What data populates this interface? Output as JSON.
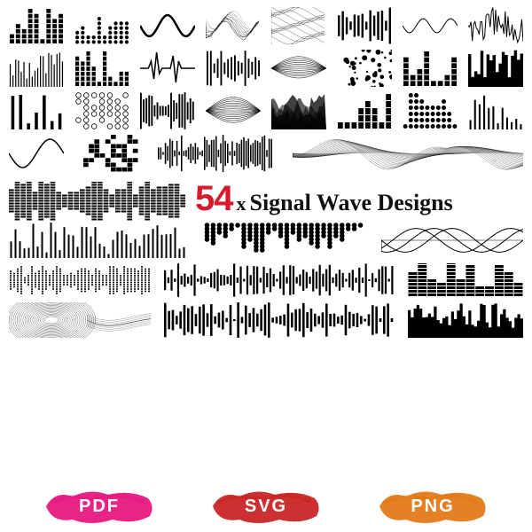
{
  "headline": {
    "count": "54",
    "x": "x",
    "text": "Signal Wave Designs"
  },
  "badges": [
    {
      "label": "PDF",
      "color": "#e6127d"
    },
    {
      "label": "SVG",
      "color": "#c91e1e"
    },
    {
      "label": "PNG",
      "color": "#e37612"
    }
  ],
  "ink": "#000000",
  "bg": "#ffffff",
  "designs": {
    "row1": [
      {
        "type": "eq-blocks",
        "cols": 9,
        "max": 7
      },
      {
        "type": "eq-dots",
        "cols": 10,
        "max": 8
      },
      {
        "type": "sine-thick",
        "amp": 12
      },
      {
        "type": "sine-ribbon",
        "lines": 9
      },
      {
        "type": "mesh-wave",
        "lines": 14
      },
      {
        "type": "bars-centered",
        "bars": 14
      },
      {
        "type": "sine-thin",
        "amp": 8
      },
      {
        "type": "scribble",
        "density": 40
      }
    ],
    "row2": [
      {
        "type": "bars-thin",
        "bars": 20
      },
      {
        "type": "eq-mixed",
        "cols": 10
      },
      {
        "type": "heartbeat"
      },
      {
        "type": "bars-varied",
        "bars": 16
      },
      {
        "type": "mesh-bulge",
        "lines": 12
      },
      {
        "type": "dots-scatter",
        "dots": 40
      },
      {
        "type": "eq-blocks",
        "cols": 8,
        "max": 6
      },
      {
        "type": "skyline",
        "bars": 18
      }
    ],
    "row3": [
      {
        "type": "bars-sparse",
        "bars": 7
      },
      {
        "type": "circles-grid",
        "rows": 6,
        "cols": 7
      },
      {
        "type": "zipper",
        "bars": 20
      },
      {
        "type": "bulge-lines",
        "lines": 14
      },
      {
        "type": "ridges-solid",
        "layers": 6
      },
      {
        "type": "eq-fat",
        "cols": 8
      },
      {
        "type": "hist-dots",
        "cols": 10
      },
      {
        "type": "bars-base",
        "bars": 12
      }
    ],
    "row4": [
      {
        "type": "sine-simple",
        "amp": 16
      },
      {
        "type": "pixel-grid",
        "rows": 8,
        "cols": 10
      },
      {
        "type": "spikes-dense",
        "bars": 50
      },
      {
        "type": "ribbon-wave-long",
        "lines": 18
      }
    ],
    "row5_left": {
      "type": "pixel-waveform",
      "cols": 30
    },
    "row5_right": {
      "type": "dot-histogram",
      "cols": 26
    },
    "row6_left": {
      "type": "bars-histogram",
      "bars": 40
    },
    "row6_right": {
      "type": "sine-overlap",
      "count": 3
    },
    "row7_left": {
      "type": "dot-waveform",
      "cols": 40
    },
    "row7_mid": {
      "type": "spikes-waveform",
      "bars": 70
    },
    "row7_right": {
      "type": "block-skyline",
      "cols": 12
    },
    "row8_left": {
      "type": "torus-wire",
      "lines": 20
    },
    "row8_mid": {
      "type": "spikes-sparse",
      "bars": 60
    },
    "row8_right": {
      "type": "hill-bars",
      "bars": 40
    }
  }
}
